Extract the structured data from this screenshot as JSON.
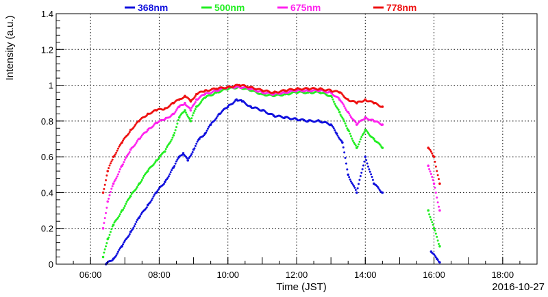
{
  "chart_data": {
    "type": "scatter",
    "title": "",
    "xlabel": "Time (JST)",
    "ylabel": "Intensity (a.u.)",
    "date_label": "2016-10-27",
    "xlim": [
      "05:00",
      "19:00"
    ],
    "ylim": [
      0,
      1.4
    ],
    "x_ticks": [
      "06:00",
      "08:00",
      "10:00",
      "12:00",
      "14:00",
      "16:00",
      "18:00"
    ],
    "y_ticks": [
      "0",
      "0.2",
      "0.4",
      "0.6",
      "0.8",
      "1",
      "1.2",
      "1.4"
    ],
    "grid": true,
    "legend_position": "top",
    "series": [
      {
        "name": "368nm",
        "color": "#1010dd",
        "points": [
          [
            "06:27",
            0.0
          ],
          [
            "06:40",
            0.03
          ],
          [
            "06:55",
            0.1
          ],
          [
            "07:10",
            0.18
          ],
          [
            "07:25",
            0.26
          ],
          [
            "07:40",
            0.33
          ],
          [
            "07:55",
            0.4
          ],
          [
            "08:10",
            0.46
          ],
          [
            "08:25",
            0.54
          ],
          [
            "08:35",
            0.6
          ],
          [
            "08:42",
            0.62
          ],
          [
            "08:50",
            0.58
          ],
          [
            "09:00",
            0.64
          ],
          [
            "09:10",
            0.7
          ],
          [
            "09:20",
            0.73
          ],
          [
            "09:30",
            0.78
          ],
          [
            "09:45",
            0.84
          ],
          [
            "10:00",
            0.88
          ],
          [
            "10:15",
            0.92
          ],
          [
            "10:25",
            0.91
          ],
          [
            "10:40",
            0.88
          ],
          [
            "11:00",
            0.86
          ],
          [
            "11:20",
            0.83
          ],
          [
            "11:40",
            0.82
          ],
          [
            "12:00",
            0.81
          ],
          [
            "12:20",
            0.8
          ],
          [
            "12:40",
            0.8
          ],
          [
            "13:00",
            0.78
          ],
          [
            "13:10",
            0.73
          ],
          [
            "13:20",
            0.68
          ],
          [
            "13:30",
            0.5
          ],
          [
            "13:45",
            0.4
          ],
          [
            "14:00",
            0.6
          ],
          [
            "14:15",
            0.45
          ],
          [
            "14:30",
            0.4
          ],
          [
            "15:55",
            0.07
          ],
          [
            "16:05",
            0.03
          ],
          [
            "16:10",
            0.01
          ]
        ]
      },
      {
        "name": "500nm",
        "color": "#22ee22",
        "points": [
          [
            "06:22",
            0.04
          ],
          [
            "06:30",
            0.14
          ],
          [
            "06:40",
            0.22
          ],
          [
            "06:55",
            0.3
          ],
          [
            "07:10",
            0.38
          ],
          [
            "07:25",
            0.45
          ],
          [
            "07:40",
            0.52
          ],
          [
            "07:55",
            0.58
          ],
          [
            "08:10",
            0.63
          ],
          [
            "08:25",
            0.72
          ],
          [
            "08:35",
            0.82
          ],
          [
            "08:45",
            0.86
          ],
          [
            "08:55",
            0.8
          ],
          [
            "09:05",
            0.88
          ],
          [
            "09:20",
            0.93
          ],
          [
            "09:40",
            0.96
          ],
          [
            "10:00",
            0.98
          ],
          [
            "10:20",
            0.99
          ],
          [
            "10:40",
            0.97
          ],
          [
            "11:00",
            0.95
          ],
          [
            "11:20",
            0.94
          ],
          [
            "11:40",
            0.95
          ],
          [
            "12:00",
            0.96
          ],
          [
            "12:20",
            0.96
          ],
          [
            "12:40",
            0.96
          ],
          [
            "13:00",
            0.94
          ],
          [
            "13:15",
            0.85
          ],
          [
            "13:30",
            0.75
          ],
          [
            "13:45",
            0.65
          ],
          [
            "14:00",
            0.75
          ],
          [
            "14:15",
            0.7
          ],
          [
            "14:30",
            0.65
          ],
          [
            "15:50",
            0.3
          ],
          [
            "16:00",
            0.2
          ],
          [
            "16:10",
            0.1
          ]
        ]
      },
      {
        "name": "675nm",
        "color": "#ff22ee",
        "points": [
          [
            "06:22",
            0.2
          ],
          [
            "06:30",
            0.35
          ],
          [
            "06:40",
            0.45
          ],
          [
            "06:55",
            0.55
          ],
          [
            "07:10",
            0.64
          ],
          [
            "07:25",
            0.7
          ],
          [
            "07:40",
            0.75
          ],
          [
            "07:55",
            0.79
          ],
          [
            "08:10",
            0.81
          ],
          [
            "08:25",
            0.84
          ],
          [
            "08:35",
            0.88
          ],
          [
            "08:45",
            0.9
          ],
          [
            "08:55",
            0.86
          ],
          [
            "09:05",
            0.92
          ],
          [
            "09:20",
            0.95
          ],
          [
            "09:40",
            0.97
          ],
          [
            "10:00",
            0.99
          ],
          [
            "10:20",
            0.99
          ],
          [
            "10:40",
            0.98
          ],
          [
            "11:00",
            0.96
          ],
          [
            "11:20",
            0.95
          ],
          [
            "11:40",
            0.96
          ],
          [
            "12:00",
            0.97
          ],
          [
            "12:20",
            0.97
          ],
          [
            "12:40",
            0.97
          ],
          [
            "13:00",
            0.96
          ],
          [
            "13:15",
            0.92
          ],
          [
            "13:30",
            0.85
          ],
          [
            "13:45",
            0.78
          ],
          [
            "14:00",
            0.82
          ],
          [
            "14:15",
            0.8
          ],
          [
            "14:30",
            0.78
          ],
          [
            "15:50",
            0.55
          ],
          [
            "16:00",
            0.45
          ],
          [
            "16:10",
            0.3
          ]
        ]
      },
      {
        "name": "778nm",
        "color": "#ee1111",
        "points": [
          [
            "06:22",
            0.4
          ],
          [
            "06:30",
            0.52
          ],
          [
            "06:40",
            0.6
          ],
          [
            "06:55",
            0.68
          ],
          [
            "07:10",
            0.75
          ],
          [
            "07:25",
            0.8
          ],
          [
            "07:40",
            0.84
          ],
          [
            "07:55",
            0.86
          ],
          [
            "08:10",
            0.87
          ],
          [
            "08:25",
            0.9
          ],
          [
            "08:35",
            0.92
          ],
          [
            "08:45",
            0.94
          ],
          [
            "08:55",
            0.91
          ],
          [
            "09:05",
            0.95
          ],
          [
            "09:20",
            0.97
          ],
          [
            "09:40",
            0.98
          ],
          [
            "10:00",
            0.99
          ],
          [
            "10:20",
            1.0
          ],
          [
            "10:40",
            0.99
          ],
          [
            "11:00",
            0.97
          ],
          [
            "11:20",
            0.96
          ],
          [
            "11:40",
            0.97
          ],
          [
            "12:00",
            0.98
          ],
          [
            "12:20",
            0.98
          ],
          [
            "12:40",
            0.98
          ],
          [
            "13:00",
            0.97
          ],
          [
            "13:15",
            0.96
          ],
          [
            "13:30",
            0.92
          ],
          [
            "13:45",
            0.9
          ],
          [
            "14:00",
            0.92
          ],
          [
            "14:15",
            0.9
          ],
          [
            "14:30",
            0.88
          ],
          [
            "15:50",
            0.65
          ],
          [
            "16:00",
            0.6
          ],
          [
            "16:10",
            0.45
          ]
        ]
      }
    ]
  }
}
